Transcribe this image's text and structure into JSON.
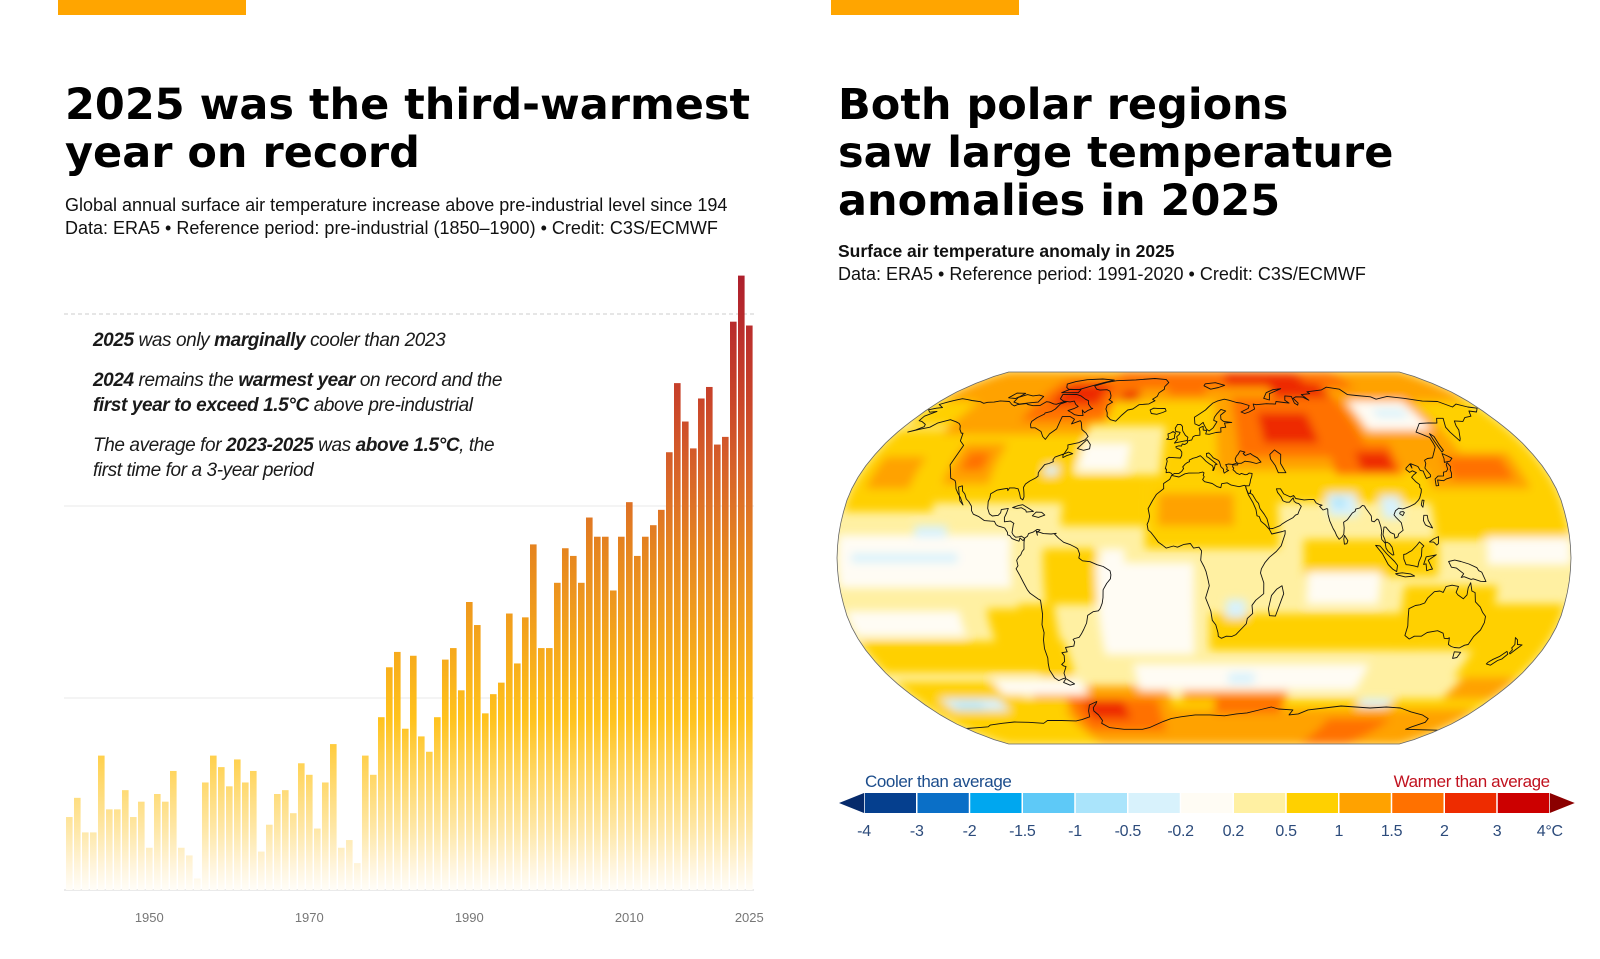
{
  "accent_color": "#ffa500",
  "chart_data": [
    {
      "type": "bar",
      "title_lines": [
        "2025 was the third-warmest",
        "year on record"
      ],
      "subtitle": "Global annual surface air temperature increase above pre-industrial level since 194",
      "source": "Data: ERA5 • Reference period: pre-industrial (1850–1900) • Credit: C3S/ECMWF",
      "annotations": [
        {
          "lines": [
            [
              {
                "text": "2025",
                "bold": true
              },
              {
                "text": " was only ",
                "bold": false
              },
              {
                "text": "marginally",
                "bold": true
              },
              {
                "text": " cooler than 2023",
                "bold": false
              }
            ]
          ]
        },
        {
          "lines": [
            [
              {
                "text": "2024",
                "bold": true
              },
              {
                "text": " remains the ",
                "bold": false
              },
              {
                "text": "warmest year",
                "bold": true
              },
              {
                "text": " on record and the",
                "bold": false
              }
            ],
            [
              {
                "text": "first year to exceed 1.5°C",
                "bold": true
              },
              {
                "text": " above pre-industrial",
                "bold": false
              }
            ]
          ]
        },
        {
          "lines": [
            [
              {
                "text": "The average for ",
                "bold": false
              },
              {
                "text": "2023-2025",
                "bold": true
              },
              {
                "text": " was ",
                "bold": false
              },
              {
                "text": "above 1.5°C",
                "bold": true
              },
              {
                "text": ", the",
                "bold": false
              }
            ],
            [
              {
                "text": "first time for a 3-year period",
                "bold": false
              }
            ]
          ]
        }
      ],
      "x": [
        1940,
        1941,
        1942,
        1943,
        1944,
        1945,
        1946,
        1947,
        1948,
        1949,
        1950,
        1951,
        1952,
        1953,
        1954,
        1955,
        1956,
        1957,
        1958,
        1959,
        1960,
        1961,
        1962,
        1963,
        1964,
        1965,
        1966,
        1967,
        1968,
        1969,
        1970,
        1971,
        1972,
        1973,
        1974,
        1975,
        1976,
        1977,
        1978,
        1979,
        1980,
        1981,
        1982,
        1983,
        1984,
        1985,
        1986,
        1987,
        1988,
        1989,
        1990,
        1991,
        1992,
        1993,
        1994,
        1995,
        1996,
        1997,
        1998,
        1999,
        2000,
        2001,
        2002,
        2003,
        2004,
        2005,
        2006,
        2007,
        2008,
        2009,
        2010,
        2011,
        2012,
        2013,
        2014,
        2015,
        2016,
        2017,
        2018,
        2019,
        2020,
        2021,
        2022,
        2023,
        2024,
        2025
      ],
      "values": [
        0.19,
        0.24,
        0.15,
        0.15,
        0.35,
        0.21,
        0.21,
        0.26,
        0.19,
        0.23,
        0.11,
        0.25,
        0.23,
        0.31,
        0.11,
        0.09,
        0.03,
        0.28,
        0.35,
        0.32,
        0.27,
        0.34,
        0.28,
        0.31,
        0.1,
        0.17,
        0.25,
        0.26,
        0.2,
        0.33,
        0.3,
        0.16,
        0.28,
        0.38,
        0.11,
        0.13,
        0.07,
        0.35,
        0.3,
        0.45,
        0.58,
        0.62,
        0.42,
        0.61,
        0.4,
        0.36,
        0.45,
        0.6,
        0.63,
        0.52,
        0.75,
        0.69,
        0.46,
        0.51,
        0.54,
        0.72,
        0.59,
        0.71,
        0.9,
        0.63,
        0.63,
        0.8,
        0.89,
        0.87,
        0.8,
        0.97,
        0.92,
        0.92,
        0.78,
        0.92,
        1.01,
        0.87,
        0.92,
        0.95,
        0.99,
        1.14,
        1.32,
        1.22,
        1.15,
        1.28,
        1.31,
        1.16,
        1.18,
        1.48,
        1.6,
        1.47
      ],
      "x_tick_values": [
        1950,
        1970,
        1990,
        2010,
        2025
      ],
      "x_tick_labels": [
        "1950",
        "1970",
        "1990",
        "2010",
        "2025"
      ],
      "xlabel": "",
      "ylabel": "",
      "ylim": [
        0,
        1.6
      ],
      "gridlines": [
        0,
        0.5,
        1.0
      ],
      "threshold_line": 1.5,
      "grid": true
    },
    {
      "type": "heatmap",
      "title_lines": [
        "Both polar regions",
        "saw large temperature",
        "anomalies in 2025"
      ],
      "subtitle": "Surface air temperature anomaly in 2025",
      "source": "Data: ERA5 • Reference period: 1991-2020 • Credit: C3S/ECMWF",
      "legend": {
        "cooler_label": "Cooler than average",
        "warmer_label": "Warmer than average",
        "bin_edges": [
          -4,
          -3,
          -2,
          -1.5,
          -1,
          -0.5,
          -0.2,
          0.2,
          0.5,
          1,
          1.5,
          2,
          3,
          4
        ],
        "tick_labels": [
          "-4",
          "-3",
          "-2",
          "-1.5",
          "-1",
          "-0.5",
          "-0.2",
          "0.2",
          "0.5",
          "1",
          "1.5",
          "2",
          "3",
          "4°C"
        ],
        "colors": [
          "#053f8e",
          "#0a6fc7",
          "#00a7ef",
          "#5ec9f7",
          "#aae4fb",
          "#d8f2fc",
          "#fffcf4",
          "#fff0a2",
          "#ffd000",
          "#ffa200",
          "#ff7100",
          "#ee2c00",
          "#cc0000"
        ],
        "under_color": "#062a6b",
        "over_color": "#8b0000"
      }
    }
  ]
}
